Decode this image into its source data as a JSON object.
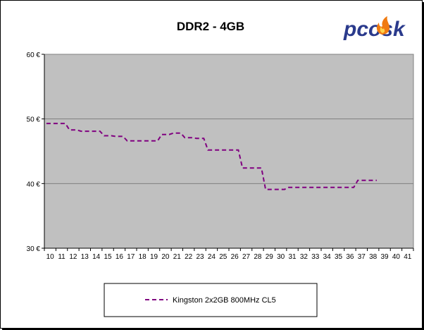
{
  "logo": {
    "text": "pcosk",
    "color": "#2a3a8c",
    "flame_color": "#f07a10"
  },
  "colors": {
    "plot_bg": "#c0c0c0",
    "series": "#800080",
    "grid": "#808080"
  },
  "chart_data": {
    "type": "line",
    "title": "DDR2 - 4GB",
    "xlabel": "",
    "ylabel": "",
    "x": [
      10,
      11,
      12,
      13,
      14,
      15,
      16,
      17,
      18,
      19,
      20,
      21,
      22,
      23,
      24,
      25,
      26,
      27,
      28,
      29,
      30,
      31,
      32,
      33,
      34,
      35,
      36,
      37,
      38,
      39,
      40,
      41
    ],
    "ylim": [
      30,
      60
    ],
    "y_ticks": [
      30,
      40,
      50,
      60
    ],
    "y_tick_labels": [
      "30 €",
      "40 €",
      "50 €",
      "60 €"
    ],
    "grid": "horizontal",
    "legend_position": "bottom",
    "series": [
      {
        "name": "Kingston 2x2GB 800MHz CL5",
        "style": "dashed",
        "values": [
          49.3,
          49.3,
          48.3,
          48.1,
          48.1,
          47.4,
          47.3,
          46.6,
          46.6,
          46.6,
          47.6,
          47.8,
          47.1,
          47.0,
          45.2,
          45.2,
          45.2,
          42.4,
          42.4,
          39.1,
          39.1,
          39.4,
          39.4,
          39.4,
          39.4,
          39.4,
          39.4,
          40.5,
          40.5,
          null,
          null,
          null
        ]
      }
    ]
  }
}
